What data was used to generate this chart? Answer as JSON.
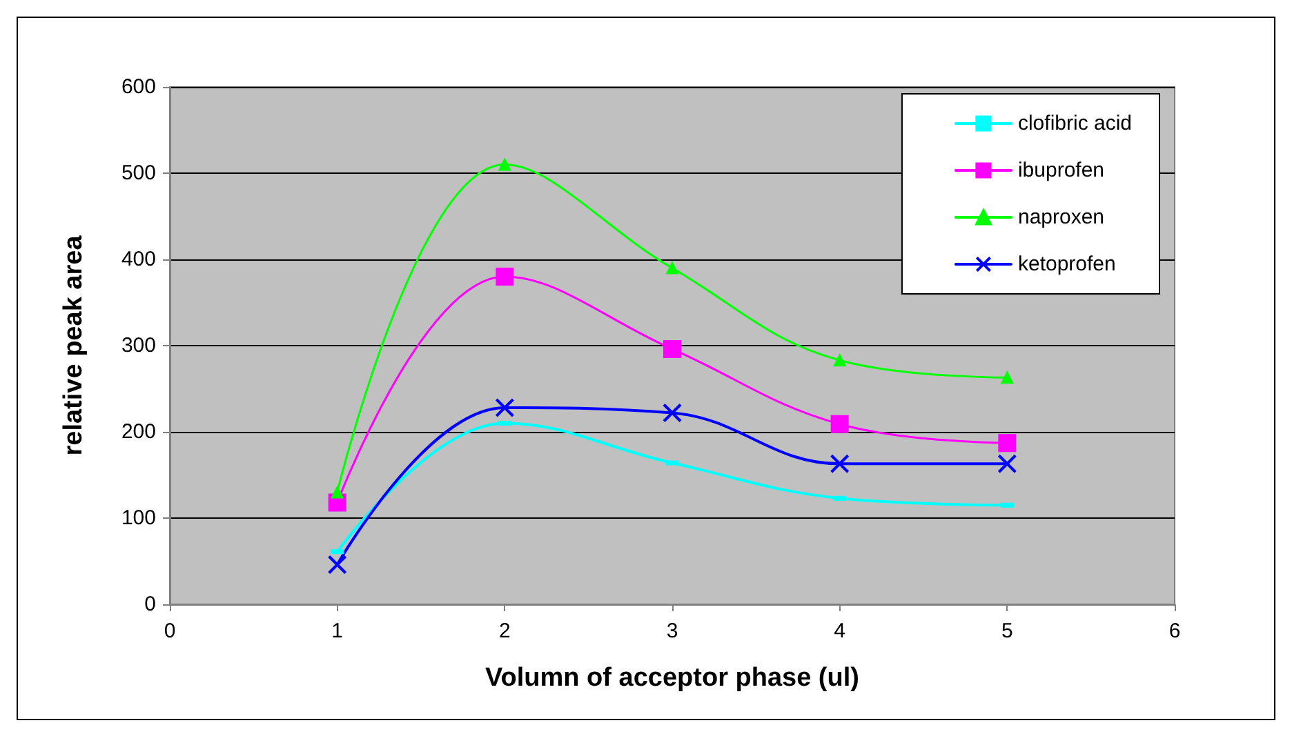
{
  "chart_data": {
    "type": "line",
    "xlabel": "Volumn of acceptor phase (ul)",
    "ylabel": "relative peak area",
    "x": [
      1,
      2,
      3,
      4,
      5
    ],
    "xlim": [
      0,
      6
    ],
    "xticks": [
      0,
      1,
      2,
      3,
      4,
      5,
      6
    ],
    "ylim": [
      0,
      600
    ],
    "yticks": [
      0,
      100,
      200,
      300,
      400,
      500,
      600
    ],
    "grid": "y",
    "legend": "top right",
    "line_style": "solid",
    "series": [
      {
        "name": "clofibric acid",
        "color": "#00ffff",
        "marker": "square",
        "values": [
          61,
          210,
          164,
          123,
          115
        ]
      },
      {
        "name": "ibuprofen",
        "color": "#ff00ff",
        "marker": "square",
        "values": [
          118,
          380,
          296,
          209,
          187
        ]
      },
      {
        "name": "naproxen",
        "color": "#00ff00",
        "marker": "triangle",
        "values": [
          130,
          510,
          390,
          283,
          263
        ]
      },
      {
        "name": "ketoprofen",
        "color": "#0000ff",
        "marker": "cross",
        "values": [
          46,
          228,
          222,
          163,
          163
        ]
      }
    ]
  }
}
